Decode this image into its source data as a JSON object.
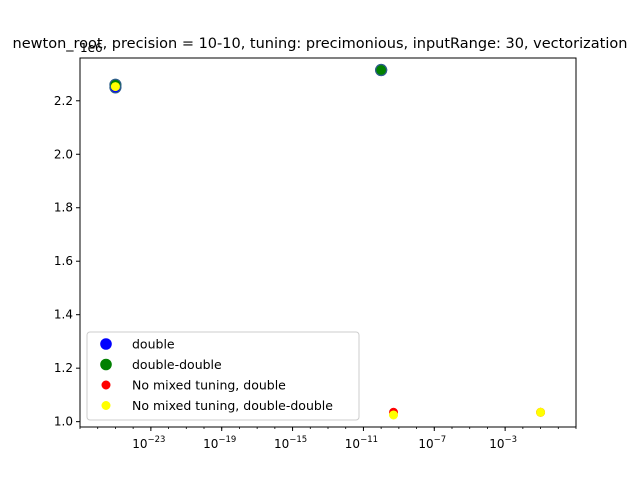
{
  "chart_data": {
    "type": "scatter",
    "title": "newton_root, precision = 10-10, tuning: precimonious, inputRange: 30, vectorization",
    "xscale": "log",
    "xlim": [
      1e-27,
      10.0
    ],
    "ylim": [
      980000.0,
      2360000.0
    ],
    "y_offset_label": "1e6",
    "y_ticks": [
      1.0,
      1.2,
      1.4,
      1.6,
      1.8,
      2.0,
      2.2
    ],
    "y_tick_labels": [
      "1.0",
      "1.2",
      "1.4",
      "1.6",
      "1.8",
      "2.0",
      "2.2"
    ],
    "x_ticks": [
      -23,
      -19,
      -15,
      -11,
      -7,
      -3
    ],
    "x_tick_base": "10",
    "x_tick_exponents": [
      "−23",
      "−19",
      "−15",
      "−11",
      "−7",
      "−3"
    ],
    "grid": false,
    "legend_position": "lower-left",
    "series": [
      {
        "name": "double",
        "color": "#0000ff",
        "edge": "#2e5e8a",
        "size": "large",
        "points": [
          {
            "x": 1e-25,
            "y": 2250000.0
          },
          {
            "x": 1e-10,
            "y": 2315000.0
          }
        ]
      },
      {
        "name": "double-double",
        "color": "#008000",
        "edge": "#2e5e8a",
        "size": "large",
        "points": [
          {
            "x": 1e-25,
            "y": 2260000.0
          },
          {
            "x": 1e-10,
            "y": 2315000.0
          }
        ]
      },
      {
        "name": "No mixed tuning, double",
        "color": "#ff0000",
        "edge": "#ff0000",
        "size": "small",
        "points": [
          {
            "x": 5e-10,
            "y": 1035000.0
          },
          {
            "x": 0.1,
            "y": 1035000.0
          }
        ]
      },
      {
        "name": "No mixed tuning, double-double",
        "color": "#ffff00",
        "edge": "#ffff00",
        "size": "small",
        "points": [
          {
            "x": 1e-25,
            "y": 2253000.0
          },
          {
            "x": 5e-10,
            "y": 1025000.0
          },
          {
            "x": 0.1,
            "y": 1035000.0
          }
        ]
      }
    ]
  }
}
